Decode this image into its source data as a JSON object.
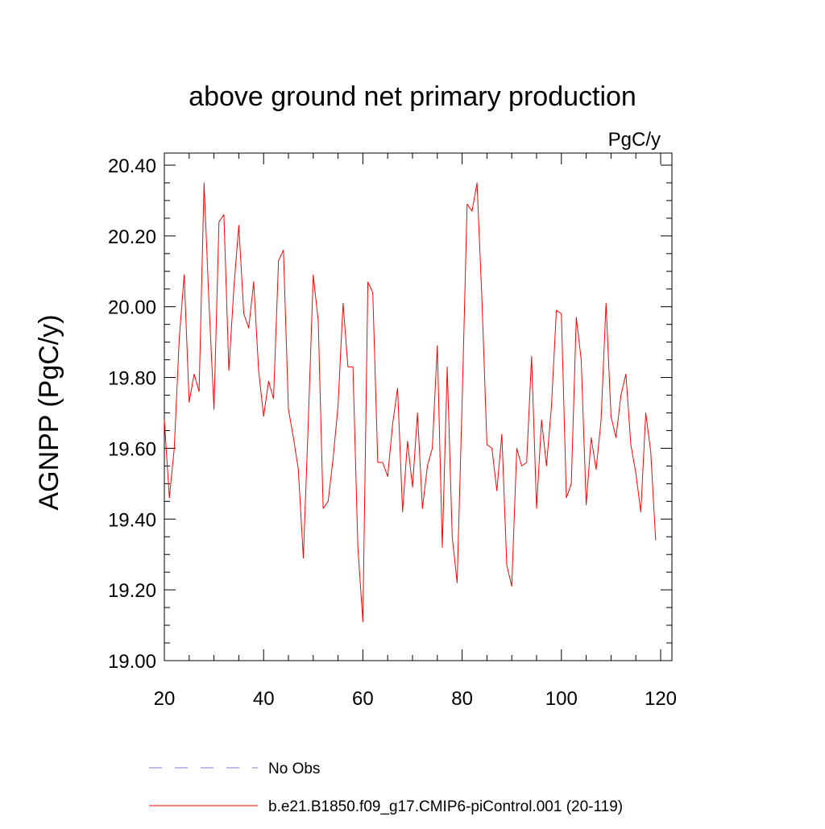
{
  "chart_data": {
    "type": "line",
    "title": "above ground net primary production",
    "units": "PgC/y",
    "ylabel": "AGNPP  (PgC/y)",
    "xlabel": "",
    "xlim": [
      20,
      120
    ],
    "ylim": [
      19.0,
      20.4
    ],
    "xticks": [
      20,
      40,
      60,
      80,
      100,
      120
    ],
    "xtick_labels": [
      "20",
      "40",
      "60",
      "80",
      "100",
      "120"
    ],
    "yticks": [
      19.0,
      19.2,
      19.4,
      19.6,
      19.8,
      20.0,
      20.2,
      20.4
    ],
    "ytick_labels": [
      "19.00",
      "19.20",
      "19.40",
      "19.60",
      "19.80",
      "20.00",
      "20.20",
      "20.40"
    ],
    "grid": false,
    "legend_position": "bottom",
    "series": [
      {
        "name": "No Obs",
        "style": "dashed",
        "color": "#7b78d8",
        "x": [],
        "values": []
      },
      {
        "name": "b.e21.B1850.f09_g17.CMIP6-piControl.001 (20-119)",
        "style": "solid",
        "color": "#ff0000",
        "x": [
          20,
          21,
          22,
          23,
          24,
          25,
          26,
          27,
          28,
          29,
          30,
          31,
          32,
          33,
          34,
          35,
          36,
          37,
          38,
          39,
          40,
          41,
          42,
          43,
          44,
          45,
          46,
          47,
          48,
          49,
          50,
          51,
          52,
          53,
          54,
          55,
          56,
          57,
          58,
          59,
          60,
          61,
          62,
          63,
          64,
          65,
          66,
          67,
          68,
          69,
          70,
          71,
          72,
          73,
          74,
          75,
          76,
          77,
          78,
          79,
          80,
          81,
          82,
          83,
          84,
          85,
          86,
          87,
          88,
          89,
          90,
          91,
          92,
          93,
          94,
          95,
          96,
          97,
          98,
          99,
          100,
          101,
          102,
          103,
          104,
          105,
          106,
          107,
          108,
          109,
          110,
          111,
          112,
          113,
          114,
          115,
          116,
          117,
          118,
          119
        ],
        "values": [
          19.68,
          19.46,
          19.6,
          19.91,
          20.09,
          19.73,
          19.81,
          19.76,
          20.35,
          20.01,
          19.71,
          20.24,
          20.26,
          19.82,
          20.05,
          20.23,
          19.98,
          19.94,
          20.07,
          19.82,
          19.69,
          19.79,
          19.74,
          20.13,
          20.16,
          19.71,
          19.63,
          19.54,
          19.29,
          19.67,
          20.09,
          19.96,
          19.43,
          19.45,
          19.57,
          19.72,
          20.01,
          19.83,
          19.83,
          19.32,
          19.11,
          20.07,
          20.04,
          19.56,
          19.56,
          19.52,
          19.67,
          19.77,
          19.42,
          19.62,
          19.49,
          19.7,
          19.43,
          19.55,
          19.6,
          19.89,
          19.32,
          19.83,
          19.35,
          19.22,
          19.73,
          20.29,
          20.27,
          20.35,
          20.02,
          19.61,
          19.6,
          19.48,
          19.64,
          19.27,
          19.21,
          19.6,
          19.55,
          19.56,
          19.86,
          19.43,
          19.68,
          19.55,
          19.72,
          19.99,
          19.98,
          19.46,
          19.5,
          19.97,
          19.85,
          19.44,
          19.63,
          19.54,
          19.68,
          20.01,
          19.69,
          19.63,
          19.75,
          19.81,
          19.61,
          19.53,
          19.42,
          19.7,
          19.59,
          19.34
        ]
      }
    ]
  }
}
